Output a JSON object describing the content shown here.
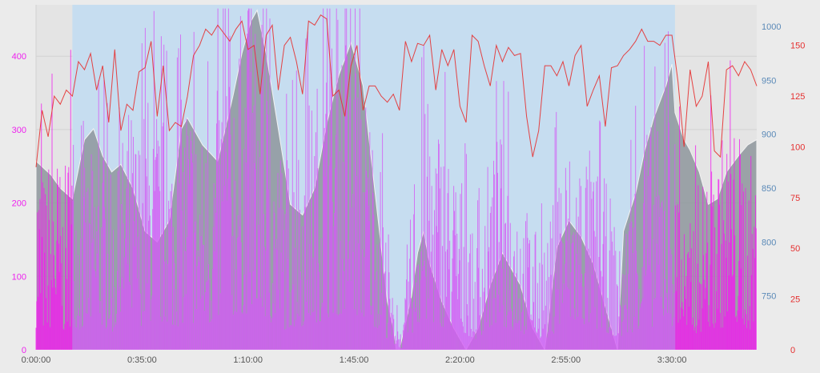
{
  "chart_data": {
    "type": "area",
    "title": "",
    "xlabel": "",
    "x_ticks": [
      "0:00:00",
      "0:35:00",
      "1:10:00",
      "1:45:00",
      "2:20:00",
      "2:55:00",
      "3:30:00"
    ],
    "x_range_minutes": [
      0,
      238
    ],
    "highlight_range_minutes": [
      12,
      211
    ],
    "grid": true,
    "axes": [
      {
        "id": "power",
        "side": "left",
        "color": "#ee22ee",
        "range": [
          0,
          470
        ],
        "ticks": [
          0,
          100,
          200,
          300,
          400
        ]
      },
      {
        "id": "elevation",
        "side": "right-inner",
        "color": "#5b8ab8",
        "range": [
          700,
          1020
        ],
        "ticks": [
          750,
          800,
          850,
          900,
          950,
          1000
        ]
      },
      {
        "id": "heart_rate",
        "side": "right-outer",
        "color": "#e53030",
        "range": [
          0,
          170
        ],
        "ticks": [
          0,
          25,
          50,
          75,
          100,
          125,
          150
        ]
      }
    ],
    "series": [
      {
        "axis": "elevation",
        "style": "area",
        "color": "#8e979c",
        "x": [
          0,
          5,
          8,
          12,
          16,
          19,
          22,
          25,
          28,
          32,
          36,
          40,
          44,
          48,
          50,
          55,
          60,
          65,
          68,
          71,
          73,
          76,
          80,
          84,
          88,
          92,
          96,
          100,
          104,
          108,
          112,
          116,
          118,
          119,
          120,
          124,
          126,
          128,
          130,
          134,
          138,
          142,
          146,
          150,
          154,
          158,
          160,
          164,
          168,
          172,
          176,
          180,
          184,
          188,
          191,
          192,
          194,
          198,
          201,
          204,
          208,
          210,
          211,
          214,
          216,
          219,
          222,
          225,
          228,
          232,
          235,
          238
        ],
        "y": [
          875,
          862,
          850,
          840,
          895,
          905,
          880,
          865,
          872,
          850,
          810,
          800,
          820,
          905,
          915,
          890,
          875,
          935,
          975,
          1005,
          1015,
          975,
          905,
          835,
          825,
          850,
          910,
          955,
          985,
          945,
          845,
          745,
          720,
          700,
          700,
          750,
          790,
          810,
          780,
          745,
          720,
          700,
          720,
          760,
          790,
          770,
          760,
          720,
          700,
          795,
          820,
          805,
          780,
          740,
          710,
          700,
          810,
          845,
          885,
          915,
          945,
          965,
          920,
          895,
          885,
          865,
          835,
          840,
          865,
          880,
          890,
          895
        ]
      },
      {
        "axis": "heart_rate",
        "style": "line",
        "color": "#e53030",
        "x": [
          0,
          2,
          4,
          6,
          8,
          10,
          12,
          14,
          16,
          18,
          20,
          22,
          24,
          26,
          28,
          30,
          32,
          34,
          36,
          38,
          40,
          42,
          44,
          46,
          48,
          50,
          52,
          54,
          56,
          58,
          60,
          62,
          64,
          66,
          68,
          70,
          72,
          74,
          76,
          78,
          80,
          82,
          84,
          86,
          88,
          90,
          92,
          94,
          96,
          98,
          100,
          102,
          104,
          106,
          108,
          110,
          112,
          114,
          116,
          118,
          120,
          122,
          124,
          126,
          128,
          130,
          132,
          134,
          136,
          138,
          140,
          142,
          144,
          146,
          148,
          150,
          152,
          154,
          156,
          158,
          160,
          162,
          164,
          166,
          168,
          170,
          172,
          174,
          176,
          178,
          180,
          182,
          184,
          186,
          188,
          190,
          192,
          194,
          196,
          198,
          200,
          202,
          204,
          206,
          208,
          210,
          212,
          214,
          216,
          218,
          220,
          222,
          224,
          226,
          228,
          230,
          232,
          234,
          236,
          238
        ],
        "y": [
          90,
          118,
          105,
          125,
          121,
          128,
          125,
          142,
          138,
          146,
          128,
          140,
          112,
          148,
          108,
          121,
          118,
          137,
          139,
          152,
          115,
          140,
          108,
          112,
          110,
          125,
          145,
          150,
          158,
          155,
          160,
          156,
          152,
          158,
          162,
          148,
          150,
          126,
          155,
          160,
          128,
          150,
          154,
          142,
          126,
          162,
          160,
          165,
          163,
          125,
          128,
          115,
          140,
          150,
          118,
          130,
          130,
          125,
          122,
          126,
          118,
          152,
          142,
          151,
          150,
          155,
          128,
          148,
          140,
          148,
          120,
          112,
          155,
          152,
          140,
          130,
          150,
          142,
          149,
          145,
          146,
          115,
          95,
          108,
          140,
          140,
          135,
          142,
          130,
          145,
          150,
          120,
          128,
          135,
          110,
          139,
          140,
          145,
          148,
          152,
          158,
          152,
          152,
          150,
          155,
          155,
          132,
          100,
          138,
          120,
          125,
          142,
          98,
          95,
          138,
          140,
          135,
          142,
          138,
          130
        ]
      },
      {
        "axis": "power",
        "style": "bars",
        "color": "#dd44ff",
        "density_profile": {
          "x": [
            0,
            3,
            6,
            9,
            12,
            15,
            18,
            22,
            26,
            30,
            34,
            38,
            42,
            46,
            50,
            54,
            58,
            62,
            66,
            70,
            74,
            78,
            82,
            86,
            90,
            94,
            98,
            102,
            106,
            110,
            114,
            117,
            121,
            125,
            129,
            133,
            137,
            141,
            145,
            149,
            153,
            157,
            161,
            165,
            169,
            173,
            177,
            181,
            185,
            189,
            193,
            197,
            201,
            205,
            209,
            212,
            215,
            218,
            221,
            224,
            227,
            230,
            233,
            236,
            238
          ],
          "y": [
            200,
            160,
            210,
            150,
            230,
            160,
            180,
            200,
            140,
            230,
            210,
            250,
            220,
            200,
            260,
            200,
            210,
            290,
            300,
            330,
            310,
            220,
            180,
            200,
            230,
            260,
            300,
            320,
            280,
            240,
            170,
            60,
            10,
            180,
            230,
            220,
            180,
            160,
            90,
            170,
            200,
            180,
            140,
            110,
            100,
            200,
            190,
            200,
            170,
            150,
            90,
            160,
            220,
            200,
            230,
            190,
            100,
            150,
            170,
            190,
            200,
            210,
            200,
            180,
            170
          ]
        }
      }
    ]
  }
}
